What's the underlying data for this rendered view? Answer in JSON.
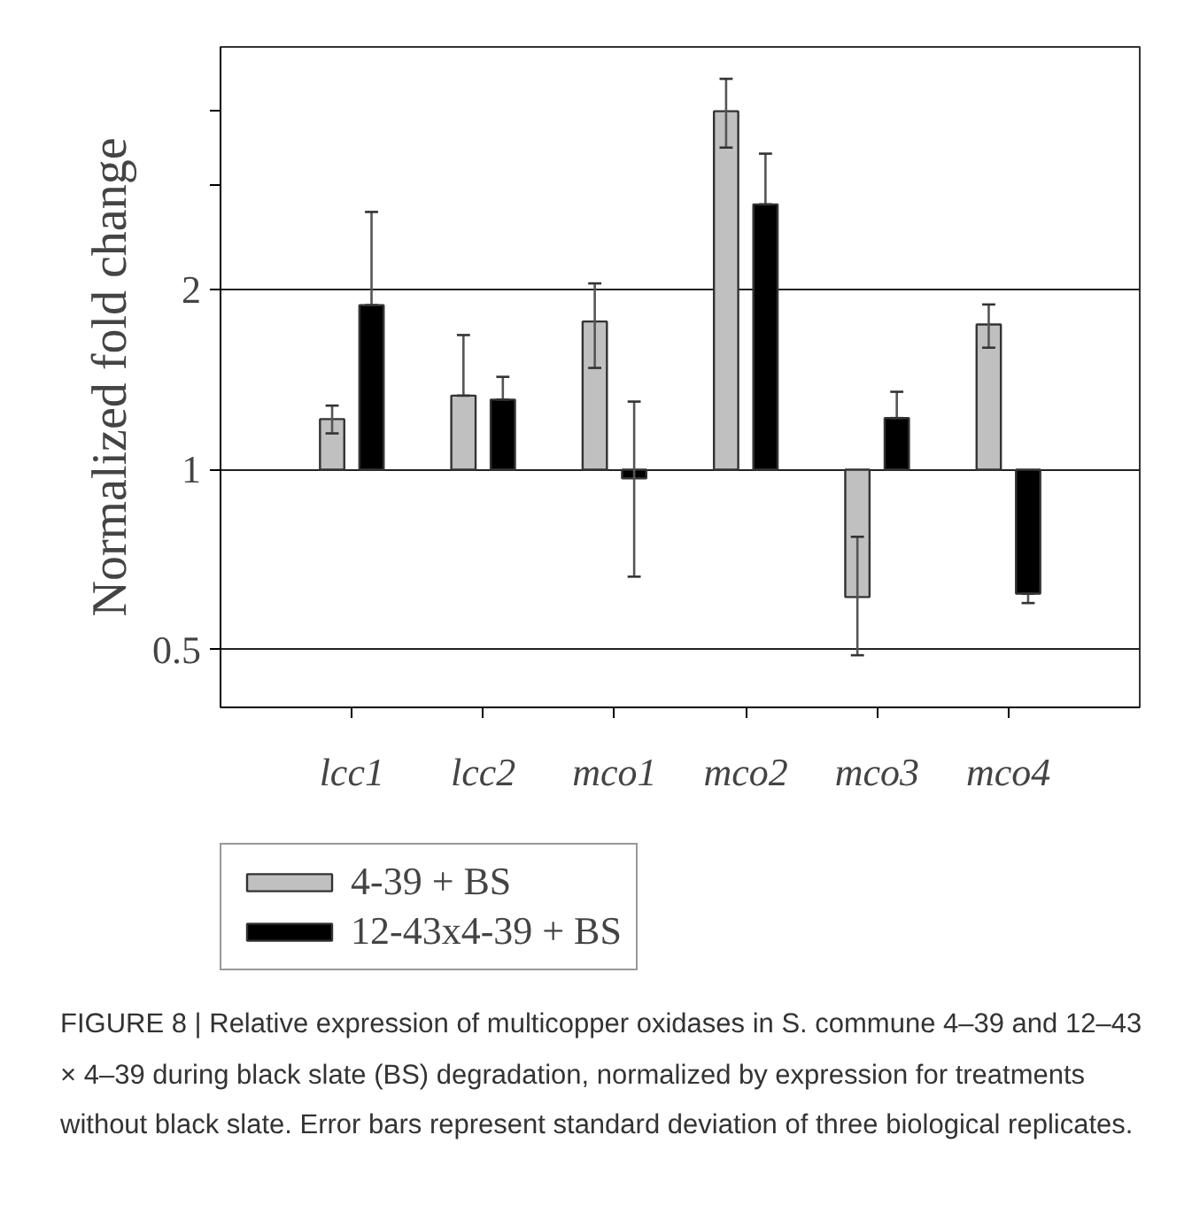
{
  "chart_data": {
    "type": "bar",
    "ylabel": "Normalized fold change",
    "categories": [
      "lcc1",
      "lcc2",
      "mco1",
      "mco2",
      "mco3",
      "mco4"
    ],
    "series": [
      {
        "name": "4-39 + BS",
        "color": "#c0c0c0",
        "base": [
          1,
          1,
          1,
          1,
          1,
          1
        ],
        "values": [
          0.215,
          0.33,
          0.77,
          2.98,
          -0.388,
          0.75
        ],
        "errors": [
          [
            1.15,
            1.28
          ],
          [
            1.33,
            1.68
          ],
          [
            1.48,
            2.05
          ],
          [
            3.46,
            4.51
          ],
          [
            0.489,
            0.772
          ],
          [
            1.6,
            1.89
          ]
        ]
      },
      {
        "name": "12-43x4-39 + BS",
        "color": "#000000",
        "base": [
          1,
          1,
          1,
          1,
          1,
          1
        ],
        "values": [
          0.885,
          0.31,
          -0.033,
          1.78,
          0.22,
          -0.38
        ],
        "errors": [
          [
            1.885,
            2.7
          ],
          [
            1.31,
            1.43
          ],
          [
            0.662,
            1.3
          ],
          [
            2.78,
            3.38
          ],
          [
            1.22,
            1.35
          ],
          [
            0.598,
            0.62
          ]
        ]
      }
    ],
    "log": true,
    "ylim": [
      0.4,
      5.1
    ],
    "yticks": [
      0.5,
      1,
      2,
      {
        "value": 3,
        "label": null
      },
      {
        "value": 4,
        "label": null
      }
    ],
    "grid": "y",
    "legend": "bottom",
    "annotations": [
      "FIGURE 8 | Relative expression of multicopper oxidases in S. commune 4–39 and 12–43 × 4–39 during black slate (BS) degradation, normalized by expression for treatments without black slate. Error bars represent standard deviation of three biological replicates."
    ]
  }
}
